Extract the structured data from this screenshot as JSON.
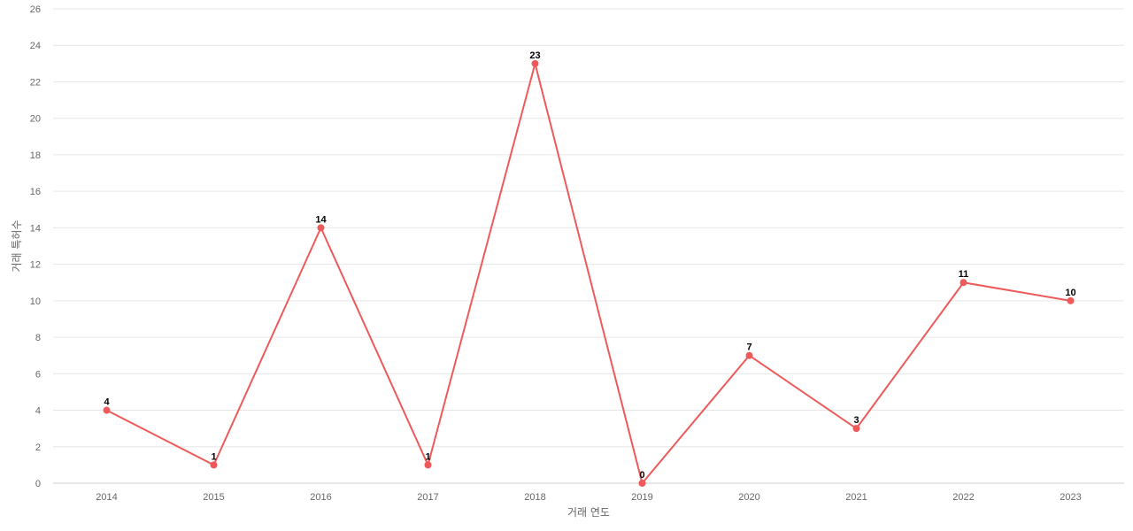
{
  "chart_data": {
    "type": "line",
    "xlabel": "거래 연도",
    "ylabel": "거래 특허수",
    "categories": [
      "2014",
      "2015",
      "2016",
      "2017",
      "2018",
      "2019",
      "2020",
      "2021",
      "2022",
      "2023"
    ],
    "series": [
      {
        "values": [
          4,
          1,
          14,
          1,
          23,
          0,
          7,
          3,
          11,
          10
        ]
      }
    ],
    "ylim": [
      0,
      26
    ],
    "yticks": [
      0,
      2,
      4,
      6,
      8,
      10,
      12,
      14,
      16,
      18,
      20,
      22,
      24,
      26
    ],
    "grid": true,
    "legend": "none",
    "data_labels": true,
    "colors": {
      "line": "#ee5a5a",
      "marker": "#ee5a5a",
      "grid": "#e6e6e6",
      "text": "#666666"
    }
  }
}
